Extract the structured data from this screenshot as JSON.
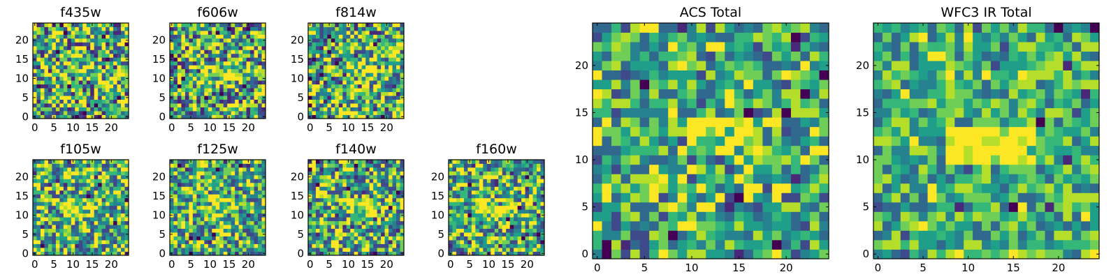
{
  "chart_data": [
    {
      "type": "heatmap",
      "title": "f435w",
      "xlabel": "",
      "ylabel": "",
      "xlim": [
        -0.5,
        24.5
      ],
      "ylim": [
        -0.5,
        24.5
      ],
      "xticks": [
        "0",
        "5",
        "10",
        "15",
        "20"
      ],
      "yticks": [
        "0",
        "5",
        "10",
        "15",
        "20"
      ],
      "grid": false,
      "colormap": "viridis",
      "grid_size": [
        25,
        25
      ],
      "pattern": "noise",
      "noise_amplitude": 1.0,
      "bright_region": {
        "row_from": 10,
        "row_to": 13,
        "col_from": 12,
        "col_to": 16,
        "level": 0.25
      },
      "seed": 11
    },
    {
      "type": "heatmap",
      "title": "f606w",
      "xlabel": "",
      "ylabel": "",
      "xlim": [
        -0.5,
        24.5
      ],
      "ylim": [
        -0.5,
        24.5
      ],
      "xticks": [
        "0",
        "5",
        "10",
        "15",
        "20"
      ],
      "yticks": [
        "0",
        "5",
        "10",
        "15",
        "20"
      ],
      "grid": false,
      "colormap": "viridis",
      "grid_size": [
        25,
        25
      ],
      "pattern": "noise",
      "noise_amplitude": 0.95,
      "bright_region": {
        "row_from": 10,
        "row_to": 14,
        "col_from": 9,
        "col_to": 16,
        "level": 0.4
      },
      "seed": 23
    },
    {
      "type": "heatmap",
      "title": "f814w",
      "xlabel": "",
      "ylabel": "",
      "xlim": [
        -0.5,
        24.5
      ],
      "ylim": [
        -0.5,
        24.5
      ],
      "xticks": [
        "0",
        "5",
        "10",
        "15",
        "20"
      ],
      "yticks": [
        "0",
        "5",
        "10",
        "15",
        "20"
      ],
      "grid": false,
      "colormap": "viridis",
      "grid_size": [
        25,
        25
      ],
      "pattern": "noise",
      "noise_amplitude": 0.9,
      "bright_region": {
        "row_from": 10,
        "row_to": 13,
        "col_from": 10,
        "col_to": 17,
        "level": 0.5
      },
      "seed": 37
    },
    {
      "type": "heatmap",
      "title": "f105w",
      "xlabel": "",
      "ylabel": "",
      "xlim": [
        -0.5,
        24.5
      ],
      "ylim": [
        -0.5,
        24.5
      ],
      "xticks": [
        "0",
        "5",
        "10",
        "15",
        "20"
      ],
      "yticks": [
        "0",
        "5",
        "10",
        "15",
        "20"
      ],
      "grid": false,
      "colormap": "viridis",
      "grid_size": [
        25,
        25
      ],
      "pattern": "noise",
      "noise_amplitude": 0.85,
      "bright_region": {
        "row_from": 10,
        "row_to": 14,
        "col_from": 8,
        "col_to": 15,
        "level": 0.55
      },
      "seed": 41
    },
    {
      "type": "heatmap",
      "title": "f125w",
      "xlabel": "",
      "ylabel": "",
      "xlim": [
        -0.5,
        24.5
      ],
      "ylim": [
        -0.5,
        24.5
      ],
      "xticks": [
        "0",
        "5",
        "10",
        "15",
        "20"
      ],
      "yticks": [
        "0",
        "5",
        "10",
        "15",
        "20"
      ],
      "grid": false,
      "colormap": "viridis",
      "grid_size": [
        25,
        25
      ],
      "pattern": "noise",
      "noise_amplitude": 0.85,
      "bright_region": {
        "row_from": 10,
        "row_to": 14,
        "col_from": 8,
        "col_to": 16,
        "level": 0.55
      },
      "seed": 53
    },
    {
      "type": "heatmap",
      "title": "f140w",
      "xlabel": "",
      "ylabel": "",
      "xlim": [
        -0.5,
        24.5
      ],
      "ylim": [
        -0.5,
        24.5
      ],
      "xticks": [
        "0",
        "5",
        "10",
        "15",
        "20"
      ],
      "yticks": [
        "0",
        "5",
        "10",
        "15",
        "20"
      ],
      "grid": false,
      "colormap": "viridis",
      "grid_size": [
        25,
        25
      ],
      "pattern": "noise",
      "noise_amplitude": 0.85,
      "bright_region": {
        "row_from": 10,
        "row_to": 14,
        "col_from": 9,
        "col_to": 17,
        "level": 0.55
      },
      "seed": 67
    },
    {
      "type": "heatmap",
      "title": "f160w",
      "xlabel": "",
      "ylabel": "",
      "xlim": [
        -0.5,
        24.5
      ],
      "ylim": [
        -0.5,
        24.5
      ],
      "xticks": [
        "0",
        "5",
        "10",
        "15",
        "20"
      ],
      "yticks": [
        "0",
        "5",
        "10",
        "15",
        "20"
      ],
      "grid": false,
      "colormap": "viridis",
      "grid_size": [
        25,
        25
      ],
      "pattern": "noise",
      "noise_amplitude": 0.85,
      "bright_region": {
        "row_from": 10,
        "row_to": 14,
        "col_from": 7,
        "col_to": 16,
        "level": 0.5
      },
      "seed": 79
    },
    {
      "type": "heatmap",
      "title": "ACS Total",
      "xlabel": "",
      "ylabel": "",
      "xlim": [
        -0.5,
        24.5
      ],
      "ylim": [
        -0.5,
        24.5
      ],
      "xticks": [
        "0",
        "5",
        "10",
        "15",
        "20"
      ],
      "yticks": [
        "0",
        "5",
        "10",
        "15",
        "20"
      ],
      "grid": false,
      "colormap": "viridis",
      "grid_size": [
        25,
        25
      ],
      "pattern": "noise",
      "noise_amplitude": 0.75,
      "bright_region": {
        "row_from": 11,
        "row_to": 14,
        "col_from": 10,
        "col_to": 17,
        "level": 0.6
      },
      "seed": 91
    },
    {
      "type": "heatmap",
      "title": "WFC3 IR Total",
      "xlabel": "",
      "ylabel": "",
      "xlim": [
        -0.5,
        24.5
      ],
      "ylim": [
        -0.5,
        24.5
      ],
      "xticks": [
        "0",
        "5",
        "10",
        "15",
        "20"
      ],
      "yticks": [
        "0",
        "5",
        "10",
        "15",
        "20"
      ],
      "grid": false,
      "colormap": "viridis",
      "grid_size": [
        25,
        25
      ],
      "pattern": "noise",
      "noise_amplitude": 0.6,
      "bright_region": {
        "row_from": 10,
        "row_to": 13,
        "col_from": 8,
        "col_to": 17,
        "level": 1.0
      },
      "seed": 103
    }
  ],
  "colors": {
    "viridis": [
      "#440154",
      "#482878",
      "#3e4a89",
      "#31688e",
      "#26828e",
      "#1f9e89",
      "#35b779",
      "#6ece58",
      "#b5de2b",
      "#fde725"
    ],
    "frame": "#000000"
  }
}
